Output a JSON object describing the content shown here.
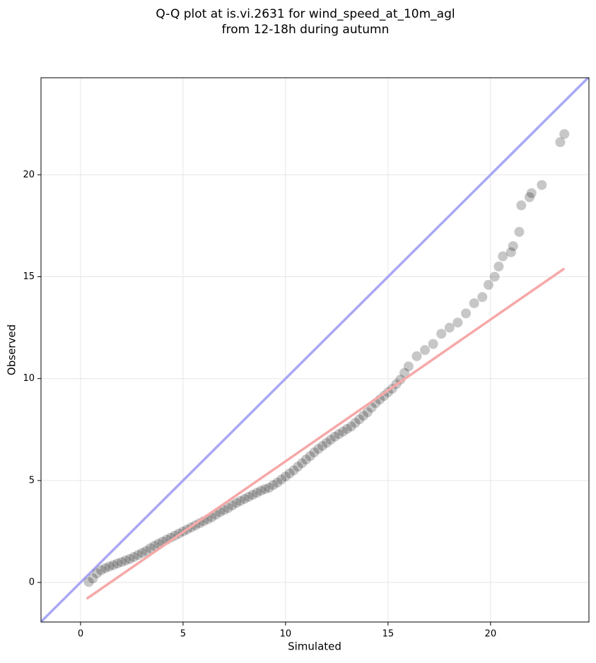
{
  "chart_data": {
    "type": "scatter",
    "title": "Q-Q plot at is.vi.2631 for wind_speed_at_10m_agl",
    "subtitle": "from 12-18h during autumn",
    "x_label": "Simulated",
    "y_label": "Observed",
    "xlim": [
      -1.93,
      24.8
    ],
    "ylim": [
      -1.94,
      24.76
    ],
    "xticks": [
      0,
      5,
      10,
      15,
      20
    ],
    "yticks": [
      0,
      5,
      10,
      15,
      20
    ],
    "grid": true,
    "point_color": "#000000",
    "point_opacity": 0.22,
    "identity_line": {
      "color": "#a8a8f4",
      "x": [
        -1.93,
        24.8
      ],
      "y": [
        -1.93,
        24.8
      ]
    },
    "fit_line": {
      "color": "#f6a8a8",
      "x": [
        0.3,
        23.6
      ],
      "y": [
        -0.8,
        15.4
      ]
    },
    "x": [
      0.4,
      0.6,
      0.8,
      1.0,
      1.2,
      1.4,
      1.6,
      1.8,
      2.0,
      2.2,
      2.4,
      2.6,
      2.8,
      3.0,
      3.2,
      3.4,
      3.6,
      3.8,
      4.0,
      4.2,
      4.4,
      4.6,
      4.8,
      5.0,
      5.2,
      5.4,
      5.6,
      5.8,
      6.0,
      6.2,
      6.4,
      6.6,
      6.8,
      7.0,
      7.2,
      7.4,
      7.6,
      7.8,
      8.0,
      8.2,
      8.4,
      8.6,
      8.8,
      9.0,
      9.2,
      9.4,
      9.6,
      9.8,
      10.0,
      10.2,
      10.4,
      10.6,
      10.8,
      11.0,
      11.2,
      11.4,
      11.6,
      11.8,
      12.0,
      12.2,
      12.4,
      12.6,
      12.8,
      13.0,
      13.2,
      13.4,
      13.6,
      13.8,
      14.0,
      14.2,
      14.4,
      14.6,
      14.8,
      15.0,
      15.2,
      15.4,
      15.6,
      15.8,
      16.0,
      16.4,
      16.8,
      17.2,
      17.6,
      18.0,
      18.4,
      18.8,
      19.2,
      19.6,
      19.9,
      20.2,
      20.4,
      20.6,
      21.0,
      21.1,
      21.4,
      21.5,
      21.9,
      22.0,
      22.5,
      23.4,
      23.6
    ],
    "y": [
      0.02,
      0.2,
      0.45,
      0.6,
      0.7,
      0.78,
      0.85,
      0.93,
      1.0,
      1.08,
      1.15,
      1.25,
      1.35,
      1.45,
      1.55,
      1.68,
      1.8,
      1.9,
      2.0,
      2.1,
      2.2,
      2.3,
      2.4,
      2.5,
      2.6,
      2.7,
      2.8,
      2.9,
      3.0,
      3.1,
      3.2,
      3.33,
      3.45,
      3.55,
      3.65,
      3.78,
      3.9,
      4.0,
      4.1,
      4.2,
      4.3,
      4.4,
      4.5,
      4.58,
      4.65,
      4.78,
      4.9,
      5.05,
      5.2,
      5.35,
      5.5,
      5.68,
      5.85,
      6.03,
      6.2,
      6.38,
      6.55,
      6.7,
      6.85,
      7.0,
      7.15,
      7.28,
      7.4,
      7.53,
      7.65,
      7.83,
      8.0,
      8.18,
      8.35,
      8.58,
      8.8,
      8.98,
      9.15,
      9.33,
      9.5,
      9.73,
      9.95,
      10.28,
      10.6,
      11.1,
      11.4,
      11.7,
      12.2,
      12.5,
      12.75,
      13.2,
      13.7,
      14.0,
      14.6,
      15.0,
      15.5,
      16.0,
      16.2,
      16.5,
      17.2,
      18.5,
      18.9,
      19.1,
      19.5,
      21.6,
      22.0
    ]
  }
}
